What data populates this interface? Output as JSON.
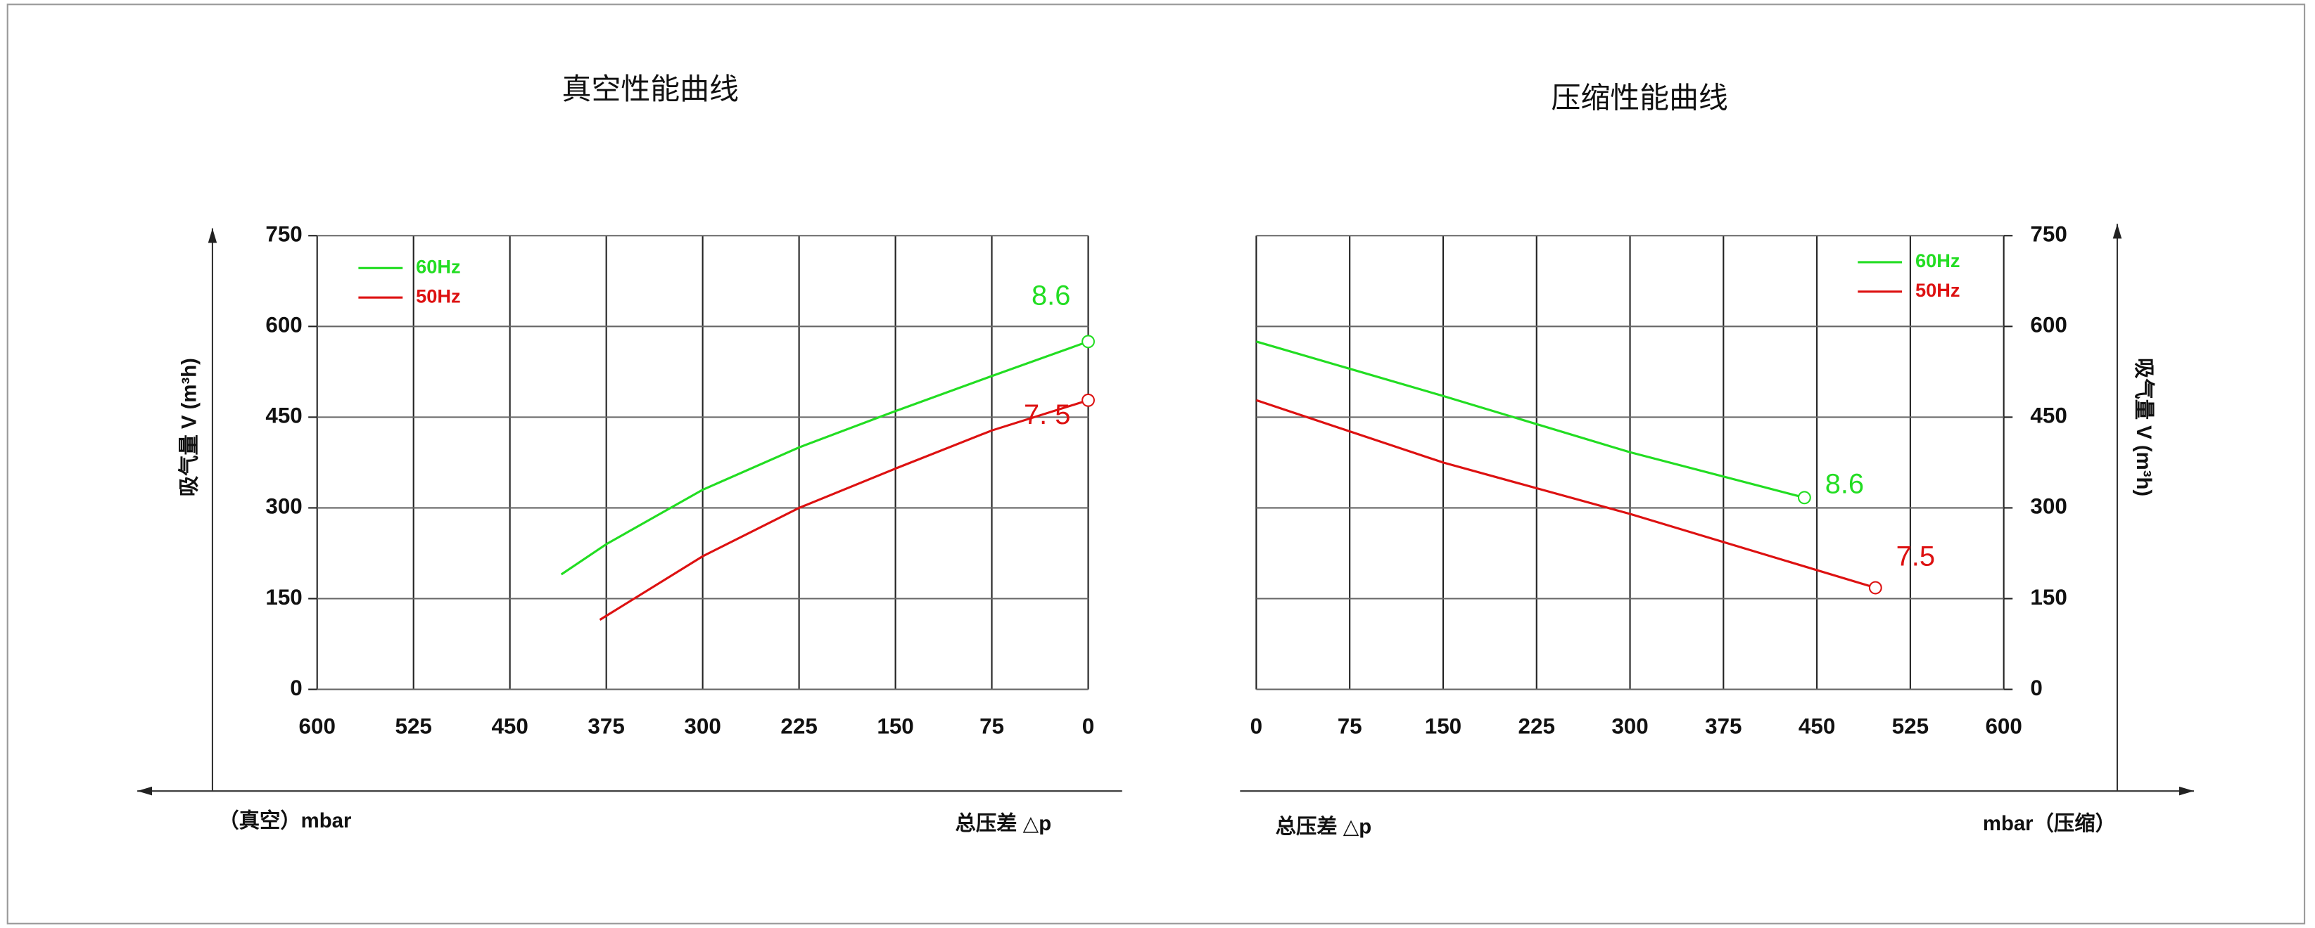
{
  "chart_data": [
    {
      "type": "line",
      "title": "真空性能曲线",
      "ylabel": "吸气量 V (m³h)",
      "xlabel_left": "（真空）mbar",
      "xlabel_right": "总压差 △p",
      "xlim": [
        600,
        0
      ],
      "xticks": [
        600,
        525,
        450,
        375,
        300,
        225,
        150,
        75,
        0
      ],
      "ylim": [
        0,
        750
      ],
      "yticks": [
        0,
        150,
        300,
        450,
        600,
        750
      ],
      "grid": true,
      "legend": "upper left",
      "y_axis_side": "left",
      "series": [
        {
          "name": "60Hz",
          "color": "#22dd22",
          "x": [
            410,
            375,
            300,
            225,
            150,
            75,
            0
          ],
          "values": [
            190,
            240,
            330,
            400,
            460,
            518,
            575
          ],
          "end_label": "8.6"
        },
        {
          "name": "50Hz",
          "color": "#dd1111",
          "x": [
            380,
            300,
            225,
            150,
            75,
            0
          ],
          "values": [
            115,
            220,
            300,
            365,
            428,
            478
          ],
          "end_label": "7. 5"
        }
      ]
    },
    {
      "type": "line",
      "title": "压缩性能曲线",
      "ylabel": "吸气量 V (m³h)",
      "xlabel_left": "总压差 △p",
      "xlabel_right": "mbar（压缩）",
      "xlim": [
        0,
        600
      ],
      "xticks": [
        0,
        75,
        150,
        225,
        300,
        375,
        450,
        525,
        600
      ],
      "ylim": [
        0,
        750
      ],
      "yticks": [
        0,
        150,
        300,
        450,
        600,
        750
      ],
      "grid": true,
      "legend": "upper right",
      "y_axis_side": "right",
      "series": [
        {
          "name": "60Hz",
          "color": "#22dd22",
          "x": [
            0,
            150,
            300,
            440
          ],
          "values": [
            575,
            485,
            392,
            317
          ],
          "end_label": "8.6"
        },
        {
          "name": "50Hz",
          "color": "#dd1111",
          "x": [
            0,
            150,
            300,
            497
          ],
          "values": [
            478,
            375,
            290,
            168
          ],
          "end_label": "7.5"
        }
      ]
    }
  ]
}
